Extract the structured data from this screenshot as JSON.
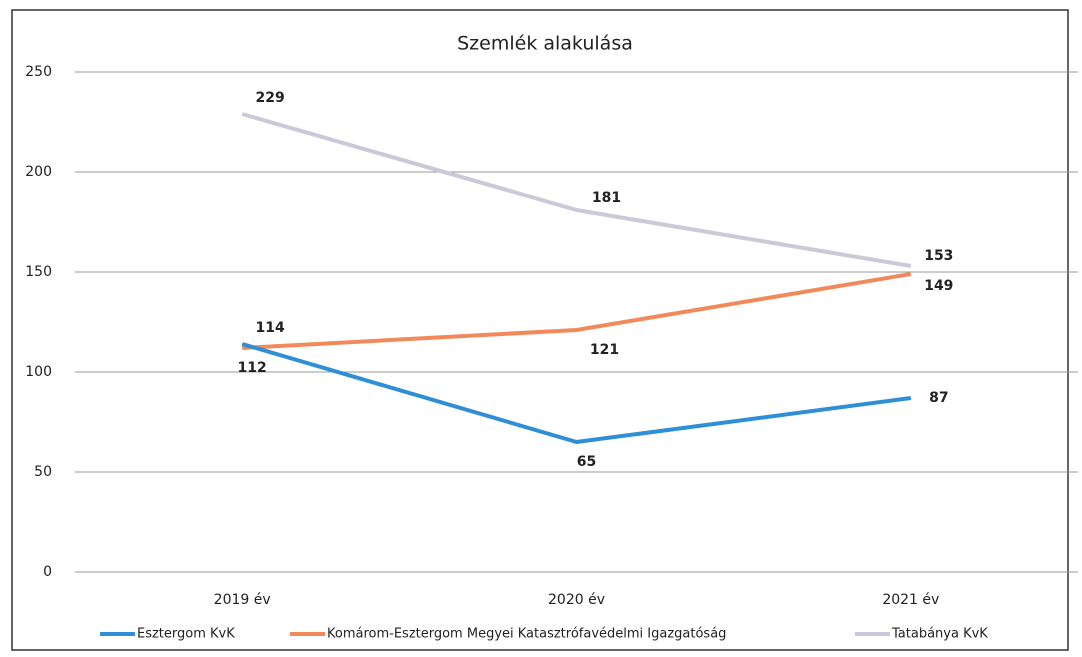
{
  "chart_data": {
    "type": "line",
    "title": "Szemlék alakulása",
    "categories": [
      "2019 év",
      "2020 év",
      "2021 év"
    ],
    "series": [
      {
        "name": "Esztergom KvK",
        "color": "#2e8fd6",
        "values": [
          114,
          65,
          87
        ]
      },
      {
        "name": "Komárom-Esztergom Megyei Katasztrófavédelmi Igazgatóság",
        "color": "#f2895a",
        "values": [
          112,
          121,
          149
        ]
      },
      {
        "name": "Tatabánya KvK",
        "color": "#c9c9d9",
        "values": [
          229,
          181,
          153
        ]
      }
    ],
    "ylim": [
      0,
      250
    ],
    "yticks": [
      0,
      50,
      100,
      150,
      200,
      250
    ],
    "grid": true,
    "legend": "bottom"
  }
}
